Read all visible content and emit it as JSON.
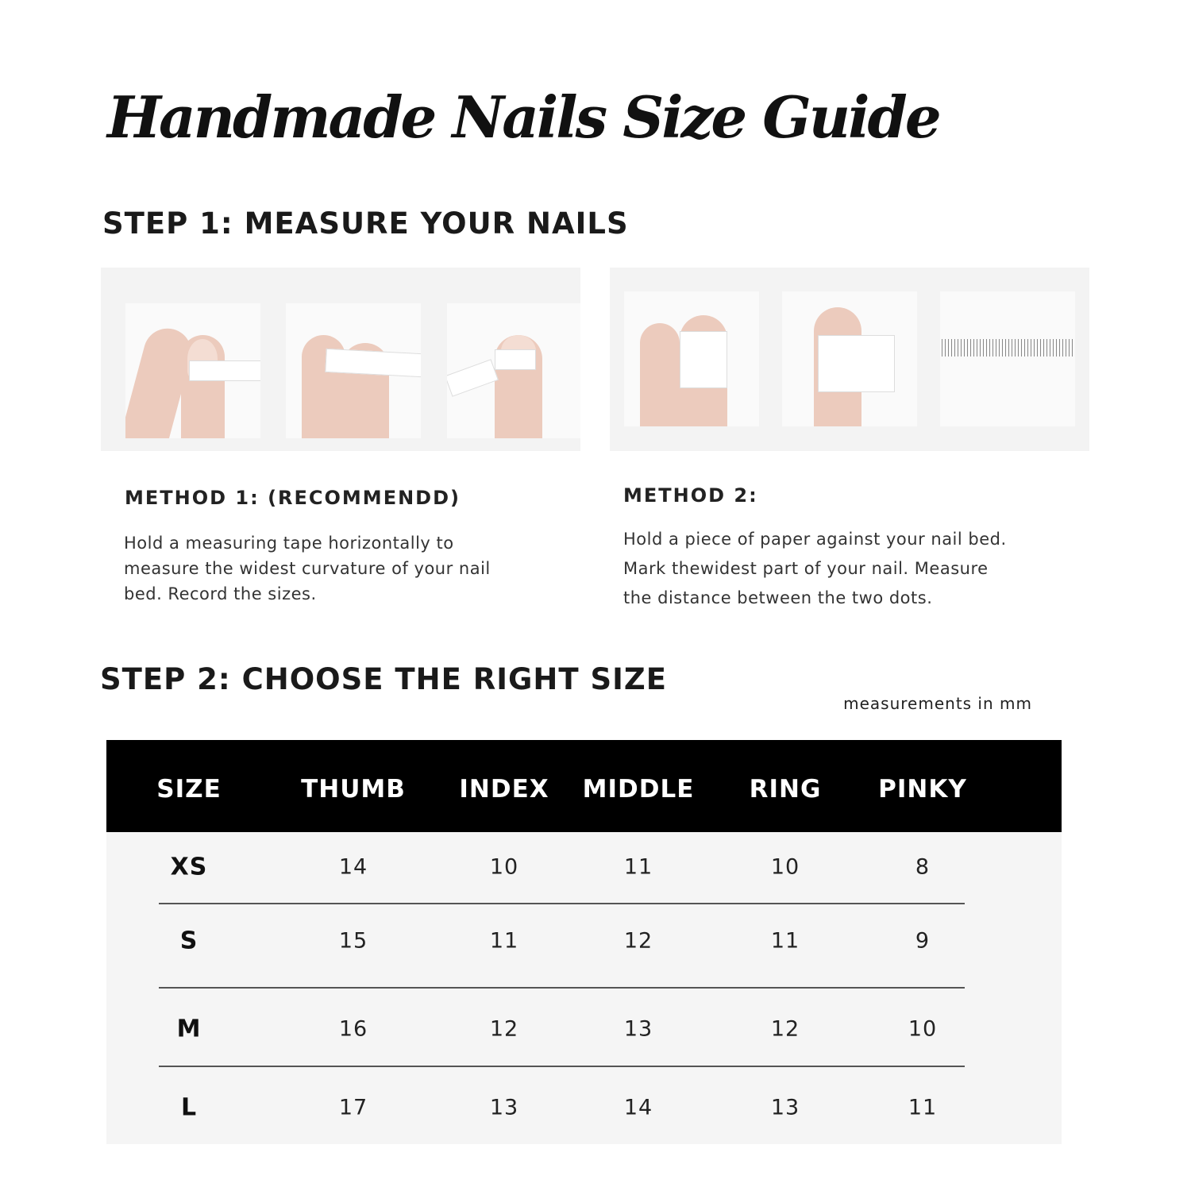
{
  "title": "Handmade Nails Size Guide",
  "step1": {
    "heading": "STEP 1: MEASURE YOUR NAILS",
    "method1": {
      "heading": "METHOD 1: (RECOMMENDD)",
      "lines": [
        "Hold a measuring tape horizontally to",
        "measure the widest curvature of your nail",
        "bed. Record the sizes."
      ]
    },
    "method2": {
      "heading": "METHOD 2:",
      "lines": [
        "Hold a piece of paper against your nail bed.",
        "Mark thewidest part of your nail. Measure",
        "the distance between the two dots."
      ]
    }
  },
  "step2": {
    "heading": "STEP 2: CHOOSE THE RIGHT SIZE",
    "unit_note": "measurements in mm",
    "table": {
      "headers": [
        "SIZE",
        "THUMB",
        "INDEX",
        "MIDDLE",
        "RING",
        "PINKY"
      ],
      "rows": [
        [
          "XS",
          "14",
          "10",
          "11",
          "10",
          "8"
        ],
        [
          "S",
          "15",
          "11",
          "12",
          "11",
          "9"
        ],
        [
          "M",
          "16",
          "12",
          "13",
          "12",
          "10"
        ],
        [
          "L",
          "17",
          "13",
          "14",
          "13",
          "11"
        ]
      ]
    }
  }
}
